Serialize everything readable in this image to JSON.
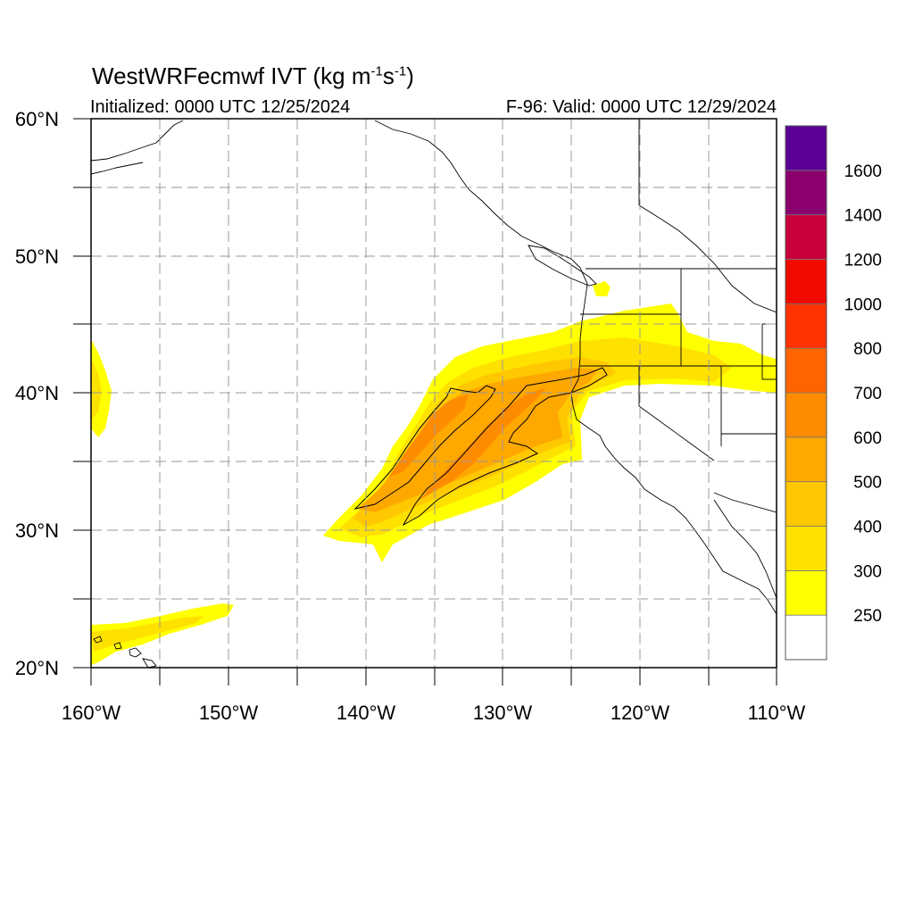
{
  "title": {
    "main": "WestWRFecmwf IVT (kg m",
    "sup1": "-1",
    "mid": "s",
    "sup2": "-1",
    "end": ")"
  },
  "subtitle": {
    "initialized": "Initialized: 0000 UTC 12/25/2024",
    "valid": "F-96: Valid: 0000 UTC 12/29/2024"
  },
  "axes": {
    "lat_labels": [
      "20°N",
      "30°N",
      "40°N",
      "50°N",
      "60°N"
    ],
    "lon_labels": [
      "160°W",
      "150°W",
      "140°W",
      "130°W",
      "120°W",
      "110°W"
    ],
    "lat_range": [
      20,
      60
    ],
    "lon_range": [
      -160,
      -110
    ],
    "grid": true,
    "grid_style": "dashed"
  },
  "colorbar": {
    "levels": [
      "250",
      "300",
      "400",
      "500",
      "600",
      "700",
      "800",
      "1000",
      "1200",
      "1400",
      "1600"
    ],
    "colors": [
      "#ffffff",
      "#ffff00",
      "#ffe100",
      "#ffc800",
      "#ffa800",
      "#ff8c00",
      "#ff6400",
      "#ff3200",
      "#f00a00",
      "#c8003c",
      "#8c006e",
      "#5a0096"
    ]
  },
  "fill_colors": {
    "ivt_250": "#ffff00",
    "ivt_300": "#ffe100",
    "ivt_400": "#ffc800",
    "ivt_500": "#ffa800",
    "ivt_600": "#ff8c00",
    "coast": "#000000",
    "grid": "#999999"
  }
}
